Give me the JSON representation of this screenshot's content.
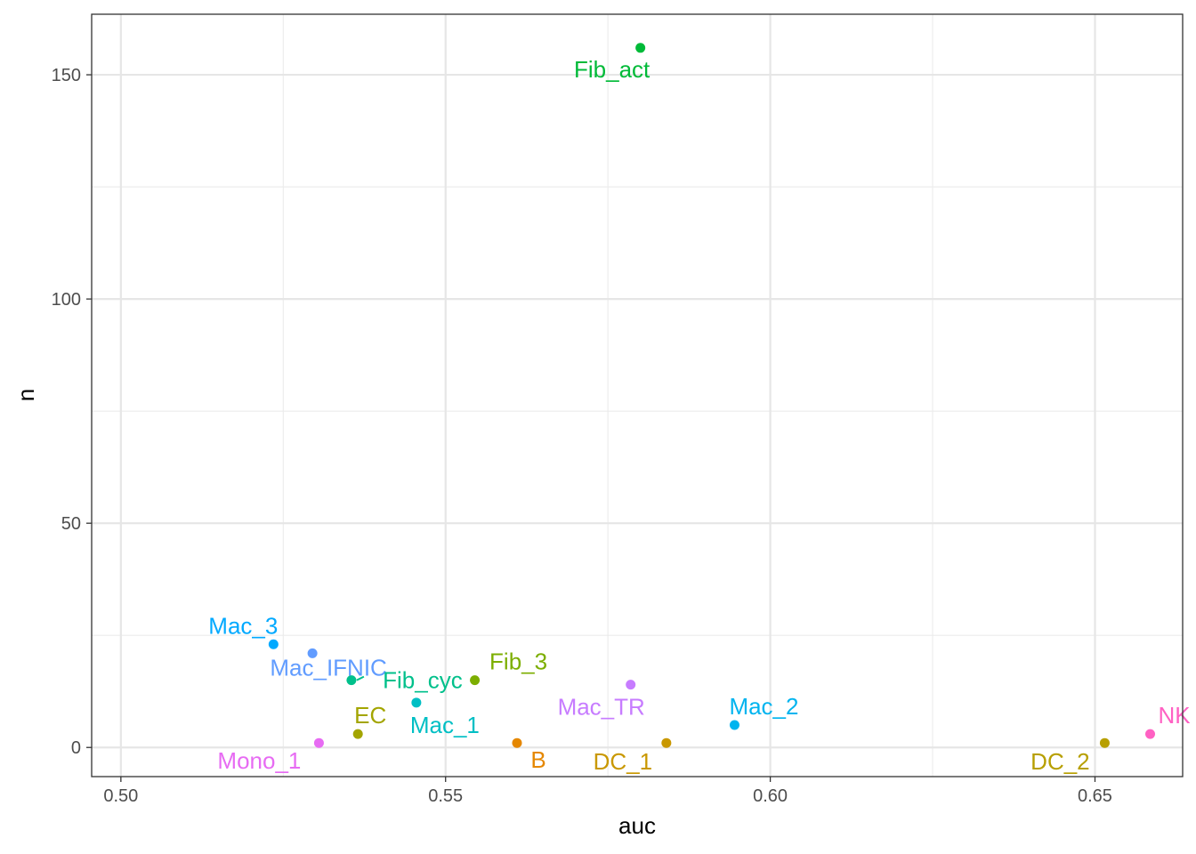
{
  "chart_data": {
    "type": "scatter",
    "title": "",
    "xlabel": "auc",
    "ylabel": "n",
    "xlim": [
      0.4955,
      0.6635
    ],
    "ylim": [
      -6.5,
      163.5
    ],
    "x_ticks": [
      {
        "value": 0.5,
        "label": "0.50"
      },
      {
        "value": 0.55,
        "label": "0.55"
      },
      {
        "value": 0.6,
        "label": "0.60"
      },
      {
        "value": 0.65,
        "label": "0.65"
      }
    ],
    "y_ticks": [
      {
        "value": 0,
        "label": "0"
      },
      {
        "value": 50,
        "label": "50"
      },
      {
        "value": 100,
        "label": "100"
      },
      {
        "value": 150,
        "label": "150"
      }
    ],
    "x_minor": [
      0.525,
      0.575,
      0.625
    ],
    "y_minor": [
      25,
      75,
      125
    ],
    "grid": true,
    "legend": "none",
    "points": [
      {
        "label": "Fib_act",
        "x": 0.58,
        "y": 156,
        "color": "#00BA38"
      },
      {
        "label": "Mac_3",
        "x": 0.5235,
        "y": 23,
        "color": "#00A9FF"
      },
      {
        "label": "Mac_IFNIC",
        "x": 0.5295,
        "y": 21,
        "color": "#619CFF"
      },
      {
        "label": "Fib_cyc",
        "x": 0.5355,
        "y": 15,
        "color": "#00C08B"
      },
      {
        "label": "Fib_3",
        "x": 0.5545,
        "y": 15,
        "color": "#7CAE00"
      },
      {
        "label": "Mac_TR",
        "x": 0.5785,
        "y": 14,
        "color": "#C77CFF"
      },
      {
        "label": "Mac_1",
        "x": 0.5455,
        "y": 10,
        "color": "#00BFC4"
      },
      {
        "label": "Mac_2",
        "x": 0.5945,
        "y": 5,
        "color": "#00B4EF"
      },
      {
        "label": "EC",
        "x": 0.5365,
        "y": 3,
        "color": "#A3A500"
      },
      {
        "label": "NK",
        "x": 0.6585,
        "y": 3,
        "color": "#FF61C3"
      },
      {
        "label": "Mono_1",
        "x": 0.5305,
        "y": 1,
        "color": "#E76BF3"
      },
      {
        "label": "B",
        "x": 0.561,
        "y": 1,
        "color": "#E58700"
      },
      {
        "label": "DC_1",
        "x": 0.584,
        "y": 1,
        "color": "#C99800"
      },
      {
        "label": "DC_2",
        "x": 0.6515,
        "y": 1,
        "color": "#B79F00"
      }
    ]
  }
}
